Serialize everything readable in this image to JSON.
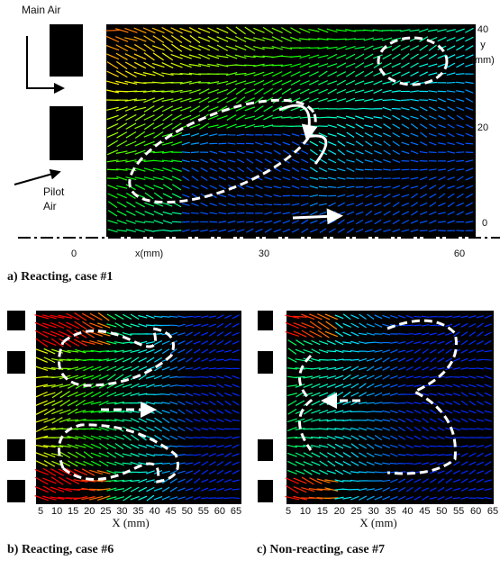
{
  "panel_a": {
    "main_air": "Main Air",
    "pilot_air": [
      "Pilot",
      "Air"
    ],
    "y_axis": "y",
    "y_unit": "(mm)",
    "x_axis": "x(mm)",
    "x_ticks": [
      0,
      30,
      60
    ],
    "y_ticks": [
      40,
      20,
      0
    ],
    "caption": "a) Reacting, case #1"
  },
  "panel_b": {
    "x_ticks": [
      5,
      10,
      15,
      20,
      25,
      30,
      35,
      40,
      45,
      50,
      55,
      60,
      65
    ],
    "x_label": "X (mm)",
    "caption": "b) Reacting, case #6"
  },
  "panel_c": {
    "x_ticks": [
      5,
      10,
      15,
      20,
      25,
      30,
      35,
      40,
      45,
      50,
      55,
      60,
      65
    ],
    "x_label": "X (mm)",
    "caption": "c) Non-reacting, case #7"
  }
}
